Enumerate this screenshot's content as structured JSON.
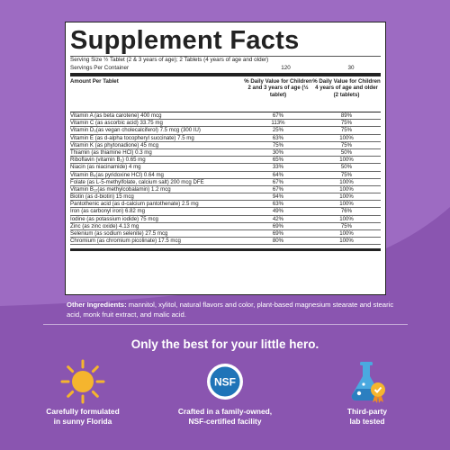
{
  "facts": {
    "title": "Supplement Facts",
    "serving_size": "Serving Size ½ Tablet (2 & 3 years of age); 2 Tablets (4 years of age and older)",
    "servings_label": "Servings Per Container",
    "servings_child_small": "120",
    "servings_child_large": "30",
    "amount_header": "Amount Per Tablet",
    "col1_header": "% Daily Value for Children 2 and 3 years of age (½ tablet)",
    "col2_header": "% Daily Value for Children 4 years of age and older (2 tablets)",
    "rows": [
      {
        "name": "Vitamin A (as beta carotene) 400 mcg",
        "p1": "67%",
        "p2": "89%"
      },
      {
        "name": "Vitamin C (as ascorbic acid) 33.75 mg",
        "p1": "113%",
        "p2": "75%"
      },
      {
        "name": "Vitamin D₃(as vegan cholecalciferol) 7.5 mcg (300 IU)",
        "p1": "25%",
        "p2": "75%"
      },
      {
        "name": "Vitamin E (as d-alpha tocopheryl succinate) 7.5 mg",
        "p1": "63%",
        "p2": "100%"
      },
      {
        "name": "Vitamin K (as phytonadione) 45 mcg",
        "p1": "75%",
        "p2": "75%"
      },
      {
        "name": "Thiamin (as thiamine HCl) 0.3 mg",
        "p1": "30%",
        "p2": "50%"
      },
      {
        "name": "Riboflavin (vitamin B₂) 0.65 mg",
        "p1": "65%",
        "p2": "100%"
      },
      {
        "name": "Niacin (as niacinamide) 4 mg",
        "p1": "33%",
        "p2": "50%"
      },
      {
        "name": "Vitamin B₆(as pyridoxine HCl) 0.64 mg",
        "p1": "64%",
        "p2": "75%"
      },
      {
        "name": "Folate (as L-5-methylfolate, calcium salt) 200 mcg DFE",
        "p1": "67%",
        "p2": "100%"
      },
      {
        "name": "Vitamin B₁₂(as methylcobalamin) 1.2 mcg",
        "p1": "67%",
        "p2": "100%"
      },
      {
        "name": "Biotin (as d-biotin) 15 mcg",
        "p1": "94%",
        "p2": "100%"
      },
      {
        "name": "Pantothenic acid (as d-calcium pantothenate) 2.5 mg",
        "p1": "63%",
        "p2": "100%"
      },
      {
        "name": "Iron (as carbonyl iron) 6.82 mg",
        "p1": "49%",
        "p2": "76%"
      },
      {
        "name": "Iodine (as potassium iodide) 75 mcg",
        "p1": "42%",
        "p2": "100%"
      },
      {
        "name": "Zinc (as zinc oxide) 4.13 mg",
        "p1": "69%",
        "p2": "75%"
      },
      {
        "name": "Selenium (as sodium selenite) 27.5 mcg",
        "p1": "69%",
        "p2": "100%"
      },
      {
        "name": "Chromium (as chromium picolinate) 17.5 mcg",
        "p1": "80%",
        "p2": "100%"
      }
    ]
  },
  "ingredients": {
    "label": "Other Ingredients:",
    "text": " mannitol, xylitol, natural flavors and color, plant-based magnesium stearate and stearic acid, monk fruit extract, and malic acid."
  },
  "tagline": "Only the best for your little hero.",
  "features": [
    {
      "icon": "sun-icon",
      "caption": "Carefully formulated\nin sunny Florida"
    },
    {
      "icon": "nsf-logo",
      "caption": "Crafted in a family-owned,\nNSF-certified facility",
      "logo_text": "NSF"
    },
    {
      "icon": "lab-flask-icon",
      "caption": "Third-party\nlab tested"
    }
  ],
  "colors": {
    "background": "#8a55b0",
    "wave_light": "#9d6bc2",
    "sun": "#f5b52e",
    "nsf_blue": "#1f74b8",
    "flask": "#4aa9e0",
    "badge": "#f5b52e"
  }
}
